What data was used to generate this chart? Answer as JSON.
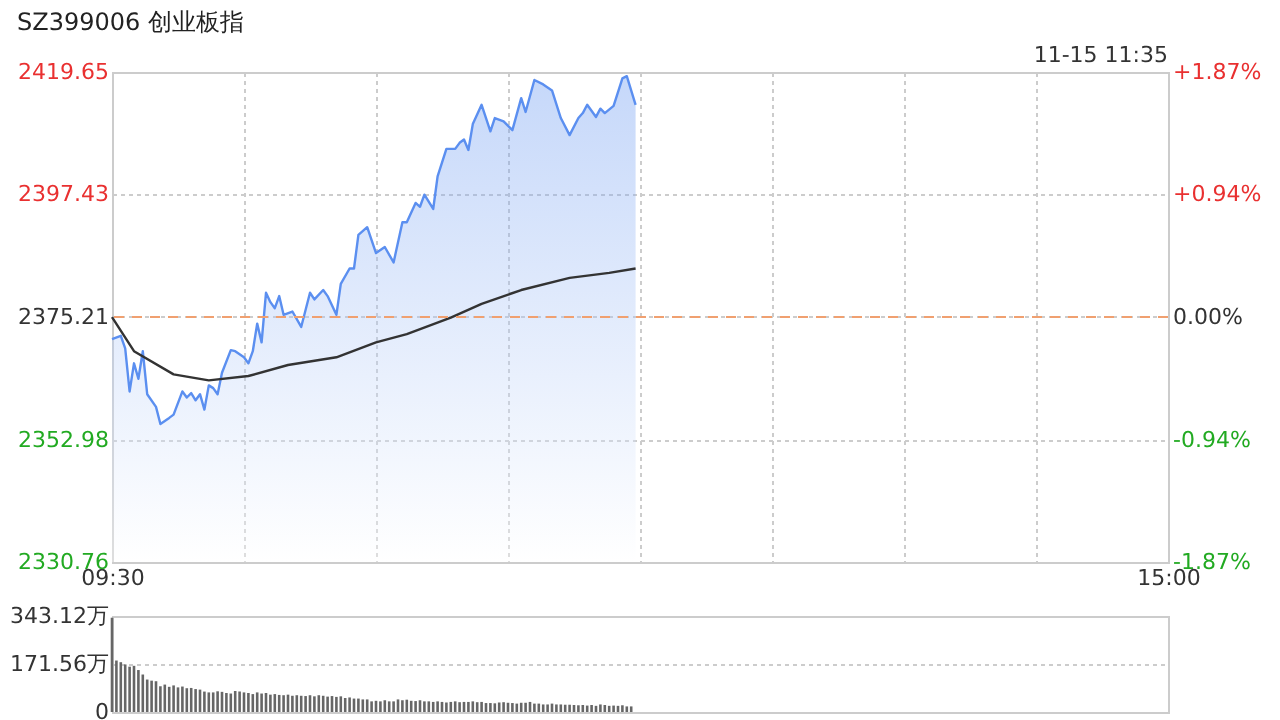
{
  "chart_data": [
    {
      "type": "line",
      "title": "SZ399006 创业板指",
      "annotations": [
        "11-15 11:35"
      ],
      "categories": [
        "09:30",
        null,
        null,
        null,
        null,
        null,
        null,
        null,
        null,
        null,
        null,
        null,
        null,
        null,
        null,
        null,
        null,
        null,
        null,
        null,
        null,
        null,
        null,
        null,
        null,
        null,
        null,
        null,
        null,
        null,
        null,
        null,
        null,
        null,
        null,
        null,
        null,
        null,
        null,
        null,
        null,
        null,
        null,
        null,
        null,
        null,
        null,
        null,
        null,
        null,
        null,
        null,
        null,
        null,
        null,
        null,
        null,
        null,
        null,
        null,
        null,
        null,
        null,
        null,
        null,
        null,
        null,
        null,
        null,
        null,
        null,
        null,
        null,
        null,
        null,
        null,
        null,
        null,
        null,
        null,
        null,
        null,
        null,
        null,
        null,
        null,
        null,
        null,
        null,
        null,
        null,
        null,
        null,
        null,
        null,
        null,
        null,
        null,
        null,
        null,
        null,
        null,
        null,
        null,
        null,
        null,
        null,
        null,
        null,
        null,
        null,
        null,
        null,
        null,
        null,
        null,
        null,
        null,
        null,
        null,
        null,
        null,
        null,
        null,
        null,
        null,
        null,
        null,
        null,
        null,
        null,
        null,
        null,
        null,
        null,
        null,
        null,
        null,
        null,
        null,
        null,
        null,
        null,
        null,
        null,
        null,
        null,
        null,
        null,
        null,
        null,
        null,
        null,
        null,
        null,
        null,
        null,
        null,
        null,
        null,
        null,
        null,
        null,
        null,
        null,
        null,
        null,
        null,
        null,
        null,
        null,
        null,
        null,
        null,
        null,
        null,
        null,
        null,
        null,
        null,
        null,
        null,
        null,
        null,
        null,
        null,
        null,
        null,
        null,
        null,
        null,
        null,
        null,
        null,
        null,
        null,
        null,
        null,
        null,
        null,
        null,
        null,
        null,
        null,
        null,
        null,
        null,
        null,
        null,
        null,
        null,
        null,
        null,
        null,
        null,
        null,
        null,
        null,
        null,
        null,
        null,
        null,
        null,
        null,
        null,
        null,
        null,
        null,
        null,
        null,
        null,
        null,
        null,
        null,
        null,
        null,
        null,
        null,
        null,
        null,
        "15:00"
      ],
      "series": [
        {
          "type": "area",
          "color": "#5b8ff0",
          "values": [
            2371.2,
            null,
            2371.8,
            2369.5,
            2361.7,
            2366.8,
            2364.0,
            2369.0,
            2361.2,
            null,
            2358.9,
            2355.8,
            null,
            2356.9,
            2357.5,
            null,
            2361.7,
            2360.6,
            2361.4,
            2360.1,
            2361.2,
            2358.4,
            2362.8,
            2362.3,
            2361.2,
            2365.1,
            null,
            2369.2,
            2369.0,
            null,
            2367.9,
            2366.8,
            2369.0,
            2374.0,
            2370.6,
            2379.6,
            2377.9,
            2376.8,
            2379.0,
            2375.6,
            null,
            2376.2,
            null,
            2373.4,
            null,
            2379.6,
            2378.4,
            null,
            2380.1,
            2379.0,
            null,
            2375.6,
            2381.2,
            null,
            2384.0,
            2384.0,
            2390.1,
            null,
            2391.5,
            null,
            2386.8,
            null,
            2387.9,
            null,
            2385.1,
            null,
            2392.4,
            2392.4,
            null,
            2395.9,
            2395.2,
            2397.4,
            null,
            2394.8,
            2400.7,
            null,
            2405.7,
            null,
            2405.7,
            2406.8,
            2407.4,
            2405.5,
            2410.2,
            null,
            2413.7,
            null,
            2408.9,
            2411.3,
            null,
            2410.7,
            null,
            2409.1,
            null,
            2414.9,
            2412.4,
            null,
            2418.2,
            null,
            2417.4,
            null,
            2416.3,
            null,
            2411.3,
            null,
            2408.2,
            null,
            2411.3,
            2412.2,
            2413.7,
            null,
            2411.5,
            2413.0,
            2412.2,
            null,
            2413.5,
            null,
            2418.5,
            2418.9,
            null,
            2413.7,
            null,
            null,
            null,
            null,
            null,
            null,
            null,
            null,
            null,
            null,
            null,
            null,
            null,
            null,
            null,
            null,
            null,
            null,
            null,
            null,
            null,
            null,
            null,
            null,
            null,
            null,
            null,
            null,
            null,
            null,
            null,
            null,
            null,
            null,
            null,
            null,
            null,
            null,
            null,
            null,
            null,
            null,
            null,
            null,
            null,
            null,
            null,
            null,
            null,
            null,
            null,
            null,
            null,
            null,
            null,
            null,
            null,
            null,
            null,
            null,
            null,
            null,
            null,
            null,
            null,
            null,
            null,
            null,
            null,
            null,
            null,
            null,
            null,
            null,
            null,
            null,
            null,
            null,
            null,
            null,
            null,
            null,
            null,
            null,
            null,
            null,
            null,
            null,
            null,
            null,
            null,
            null,
            null,
            null,
            null,
            null,
            null,
            null,
            null,
            null,
            null,
            null,
            null,
            null,
            null,
            null,
            null,
            null,
            null,
            null,
            null,
            null,
            null,
            null,
            null,
            null,
            null,
            null,
            null,
            null,
            null
          ]
        },
        {
          "type": "line",
          "color": "#333333",
          "values": [
            2375.2,
            null,
            null,
            null,
            null,
            2369.0,
            null,
            null,
            null,
            null,
            null,
            null,
            null,
            null,
            2364.8,
            null,
            null,
            null,
            null,
            null,
            null,
            null,
            2363.7,
            null,
            null,
            null,
            null,
            null,
            null,
            null,
            null,
            2364.5,
            null,
            null,
            null,
            null,
            null,
            null,
            null,
            null,
            2366.5,
            null,
            null,
            null,
            null,
            null,
            null,
            null,
            null,
            null,
            null,
            2367.9,
            null,
            null,
            null,
            null,
            null,
            null,
            null,
            null,
            2370.6,
            null,
            null,
            null,
            null,
            null,
            null,
            2372.1,
            null,
            null,
            null,
            null,
            null,
            null,
            null,
            null,
            null,
            2375.1,
            null,
            null,
            null,
            null,
            null,
            null,
            2377.6,
            null,
            null,
            null,
            null,
            null,
            null,
            null,
            null,
            2380.1,
            null,
            null,
            null,
            null,
            null,
            null,
            null,
            null,
            null,
            null,
            2382.3,
            null,
            null,
            null,
            null,
            null,
            null,
            null,
            null,
            2383.2,
            null,
            null,
            null,
            null,
            null,
            2384.0,
            null,
            null,
            null,
            null,
            null,
            null,
            null,
            null,
            null,
            null,
            null,
            null,
            null,
            null,
            null,
            null,
            null,
            null,
            null,
            null,
            null,
            null,
            null,
            null,
            null,
            null,
            null,
            null,
            null,
            null,
            null,
            null,
            null,
            null,
            null,
            null,
            null,
            null,
            null,
            null,
            null,
            null,
            null,
            null,
            null,
            null,
            null,
            null,
            null,
            null,
            null,
            null,
            null,
            null,
            null,
            null,
            null,
            null,
            null,
            null,
            null,
            null,
            null,
            null,
            null,
            null,
            null,
            null,
            null,
            null,
            null,
            null,
            null,
            null,
            null,
            null,
            null,
            null,
            null,
            null,
            null,
            null,
            null,
            null,
            null,
            null,
            null,
            null,
            null,
            null,
            null,
            null,
            null,
            null,
            null,
            null,
            null,
            null,
            null,
            null,
            null,
            null,
            null,
            null,
            null,
            null,
            null,
            null,
            null,
            null,
            null,
            null,
            null,
            null,
            null,
            null,
            null,
            null,
            null,
            null,
            null
          ]
        }
      ],
      "ylim": [
        2330.76,
        2419.65
      ],
      "yticks": [
        2330.76,
        2352.98,
        2375.21,
        2397.43,
        2419.65
      ],
      "y2lim": [
        -1.87,
        1.87
      ],
      "y2ticks": [
        {
          "value": -1.87,
          "label": "-1.87%"
        },
        {
          "value": -0.94,
          "label": "-0.94%"
        },
        {
          "value": 0,
          "label": "0.00%"
        },
        {
          "value": 0.94,
          "label": "+0.94%"
        },
        {
          "value": 1.87,
          "label": "+1.87%"
        }
      ],
      "ref_lines": [
        {
          "axis": "y",
          "value": 2375.21,
          "color": "#f0a070",
          "line_style": "dashed"
        }
      ],
      "grid": true
    },
    {
      "type": "bar",
      "color": "#666666",
      "categories": [
        null,
        null,
        null,
        null,
        null,
        null,
        null,
        null,
        null,
        null,
        null,
        null,
        null,
        null,
        null,
        null,
        null,
        null,
        null,
        null,
        null,
        null,
        null,
        null,
        null,
        null,
        null,
        null,
        null,
        null,
        null,
        null,
        null,
        null,
        null,
        null,
        null,
        null,
        null,
        null,
        null,
        null,
        null,
        null,
        null,
        null,
        null,
        null,
        null,
        null,
        null,
        null,
        null,
        null,
        null,
        null,
        null,
        null,
        null,
        null,
        null,
        null,
        null,
        null,
        null,
        null,
        null,
        null,
        null,
        null,
        null,
        null,
        null,
        null,
        null,
        null,
        null,
        null,
        null,
        null,
        null,
        null,
        null,
        null,
        null,
        null,
        null,
        null,
        null,
        null,
        null,
        null,
        null,
        null,
        null,
        null,
        null,
        null,
        null,
        null,
        null,
        null,
        null,
        null,
        null,
        null,
        null,
        null,
        null,
        null,
        null,
        null,
        null,
        null,
        null,
        null,
        null,
        null,
        null,
        null,
        null,
        null,
        null,
        null,
        null,
        null,
        null,
        null,
        null,
        null,
        null,
        null,
        null,
        null,
        null,
        null,
        null,
        null,
        null,
        null,
        null,
        null,
        null,
        null,
        null,
        null,
        null,
        null,
        null,
        null,
        null,
        null,
        null,
        null,
        null,
        null,
        null,
        null,
        null,
        null,
        null,
        null,
        null,
        null,
        null,
        null,
        null,
        null,
        null,
        null,
        null,
        null,
        null,
        null,
        null,
        null,
        null,
        null,
        null,
        null,
        null,
        null,
        null,
        null,
        null,
        null,
        null,
        null,
        null,
        null,
        null,
        null,
        null,
        null,
        null,
        null,
        null,
        null,
        null,
        null,
        null,
        null,
        null,
        null,
        null,
        null,
        null,
        null,
        null,
        null,
        null,
        null,
        null,
        null,
        null,
        null,
        null,
        null,
        null,
        null,
        null,
        null,
        null,
        null,
        null,
        null,
        null,
        null,
        null,
        null,
        null,
        null,
        null,
        null,
        null,
        null,
        null,
        null,
        null,
        null,
        null
      ],
      "values": [
        337,
        184,
        178,
        170,
        162,
        165,
        150,
        134,
        116,
        112,
        110,
        92,
        98,
        90,
        95,
        88,
        91,
        85,
        86,
        82,
        80,
        73,
        70,
        70,
        74,
        72,
        68,
        66,
        75,
        73,
        70,
        68,
        64,
        70,
        66,
        68,
        62,
        64,
        61,
        60,
        62,
        58,
        60,
        58,
        57,
        60,
        56,
        60,
        58,
        55,
        57,
        54,
        56,
        50,
        52,
        48,
        48,
        45,
        45,
        38,
        40,
        38,
        42,
        38,
        38,
        45,
        42,
        44,
        40,
        39,
        42,
        38,
        38,
        36,
        38,
        36,
        34,
        36,
        38,
        35,
        36,
        36,
        38,
        35,
        36,
        32,
        32,
        31,
        34,
        35,
        33,
        32,
        30,
        33,
        33,
        36,
        30,
        30,
        27,
        27,
        30,
        27,
        27,
        26,
        26,
        25,
        24,
        25,
        23,
        25,
        22,
        27,
        25,
        22,
        23,
        22,
        24,
        20,
        20,
        null,
        null,
        null,
        null,
        null,
        null,
        null,
        null,
        null,
        null,
        null,
        null,
        null,
        null,
        null,
        null,
        null,
        null,
        null,
        null,
        null,
        null,
        null,
        null,
        null,
        null,
        null,
        null,
        null,
        null,
        null,
        null,
        null,
        null,
        null,
        null,
        null,
        null,
        null,
        null,
        null,
        null,
        null,
        null,
        null,
        null,
        null,
        null,
        null,
        null,
        null,
        null,
        null,
        null,
        null,
        null,
        null,
        null,
        null,
        null,
        null,
        null,
        null,
        null,
        null,
        null,
        null,
        null,
        null,
        null,
        null,
        null,
        null,
        null,
        null,
        null,
        null,
        null,
        null,
        null,
        null,
        null,
        null,
        null,
        null,
        null,
        null,
        null,
        null,
        null,
        null,
        null,
        null,
        null,
        null,
        null,
        null,
        null,
        null,
        null,
        null,
        null,
        null,
        null,
        null,
        null,
        null,
        null,
        null,
        null,
        null,
        null,
        null,
        null,
        null,
        null,
        null,
        null,
        null,
        null,
        null,
        null
      ],
      "ylim": [
        0,
        343.12
      ],
      "yticks": [
        0,
        {
          "value": 171.56,
          "label": "171.56万"
        },
        {
          "value": 343.12,
          "label": "343.12万"
        }
      ],
      "tick_labels": "y",
      "grid": "y"
    }
  ]
}
